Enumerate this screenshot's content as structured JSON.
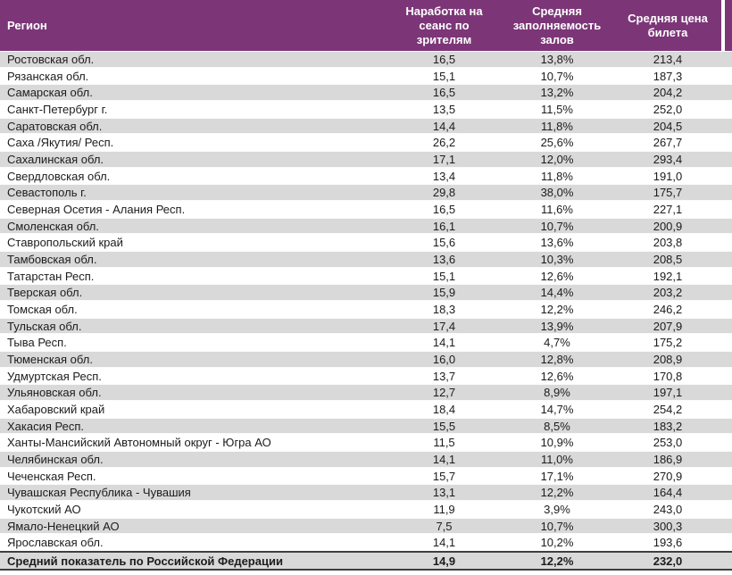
{
  "table": {
    "header": {
      "region": "Регион",
      "shows": "Наработка на сеанс по зрителям",
      "occupancy": "Средняя заполняемость залов",
      "price": "Средняя цена билета"
    },
    "rows": [
      {
        "region": "Ростовская обл.",
        "shows": "16,5",
        "occupancy": "13,8%",
        "price": "213,4"
      },
      {
        "region": "Рязанская обл.",
        "shows": "15,1",
        "occupancy": "10,7%",
        "price": "187,3"
      },
      {
        "region": "Самарская обл.",
        "shows": "16,5",
        "occupancy": "13,2%",
        "price": "204,2"
      },
      {
        "region": "Санкт-Петербург г.",
        "shows": "13,5",
        "occupancy": "11,5%",
        "price": "252,0"
      },
      {
        "region": "Саратовская обл.",
        "shows": "14,4",
        "occupancy": "11,8%",
        "price": "204,5"
      },
      {
        "region": "Саха /Якутия/ Респ.",
        "shows": "26,2",
        "occupancy": "25,6%",
        "price": "267,7"
      },
      {
        "region": "Сахалинская обл.",
        "shows": "17,1",
        "occupancy": "12,0%",
        "price": "293,4"
      },
      {
        "region": "Свердловская обл.",
        "shows": "13,4",
        "occupancy": "11,8%",
        "price": "191,0"
      },
      {
        "region": "Севастополь г.",
        "shows": "29,8",
        "occupancy": "38,0%",
        "price": "175,7"
      },
      {
        "region": "Северная Осетия - Алания Респ.",
        "shows": "16,5",
        "occupancy": "11,6%",
        "price": "227,1"
      },
      {
        "region": "Смоленская обл.",
        "shows": "16,1",
        "occupancy": "10,7%",
        "price": "200,9"
      },
      {
        "region": "Ставропольский край",
        "shows": "15,6",
        "occupancy": "13,6%",
        "price": "203,8"
      },
      {
        "region": "Тамбовская обл.",
        "shows": "13,6",
        "occupancy": "10,3%",
        "price": "208,5"
      },
      {
        "region": "Татарстан Респ.",
        "shows": "15,1",
        "occupancy": "12,6%",
        "price": "192,1"
      },
      {
        "region": "Тверская обл.",
        "shows": "15,9",
        "occupancy": "14,4%",
        "price": "203,2"
      },
      {
        "region": "Томская обл.",
        "shows": "18,3",
        "occupancy": "12,2%",
        "price": "246,2"
      },
      {
        "region": "Тульская обл.",
        "shows": "17,4",
        "occupancy": "13,9%",
        "price": "207,9"
      },
      {
        "region": "Тыва Респ.",
        "shows": "14,1",
        "occupancy": "4,7%",
        "price": "175,2"
      },
      {
        "region": "Тюменская обл.",
        "shows": "16,0",
        "occupancy": "12,8%",
        "price": "208,9"
      },
      {
        "region": "Удмуртская Респ.",
        "shows": "13,7",
        "occupancy": "12,6%",
        "price": "170,8"
      },
      {
        "region": "Ульяновская обл.",
        "shows": "12,7",
        "occupancy": "8,9%",
        "price": "197,1"
      },
      {
        "region": "Хабаровский край",
        "shows": "18,4",
        "occupancy": "14,7%",
        "price": "254,2"
      },
      {
        "region": "Хакасия Респ.",
        "shows": "15,5",
        "occupancy": "8,5%",
        "price": "183,2"
      },
      {
        "region": "Ханты-Мансийский Автономный округ - Югра АО",
        "shows": "11,5",
        "occupancy": "10,9%",
        "price": "253,0"
      },
      {
        "region": "Челябинская обл.",
        "shows": "14,1",
        "occupancy": "11,0%",
        "price": "186,9"
      },
      {
        "region": "Чеченская Респ.",
        "shows": "15,7",
        "occupancy": "17,1%",
        "price": "270,9"
      },
      {
        "region": "Чувашская Республика - Чувашия",
        "shows": "13,1",
        "occupancy": "12,2%",
        "price": "164,4"
      },
      {
        "region": "Чукотский АО",
        "shows": "11,9",
        "occupancy": "3,9%",
        "price": "243,0"
      },
      {
        "region": "Ямало-Ненецкий АО",
        "shows": "7,5",
        "occupancy": "10,7%",
        "price": "300,3"
      },
      {
        "region": "Ярославская обл.",
        "shows": "14,1",
        "occupancy": "10,2%",
        "price": "193,6"
      }
    ],
    "total": {
      "region": "Средний показатель по Российской Федерации",
      "shows": "14,9",
      "occupancy": "12,2%",
      "price": "232,0"
    }
  },
  "colors": {
    "header_bg": "#7c3678",
    "header_text": "#ffffff",
    "stripe_bg": "#d9d9d9",
    "row_text": "#1c1c1c",
    "total_border": "#3f3f3f"
  }
}
